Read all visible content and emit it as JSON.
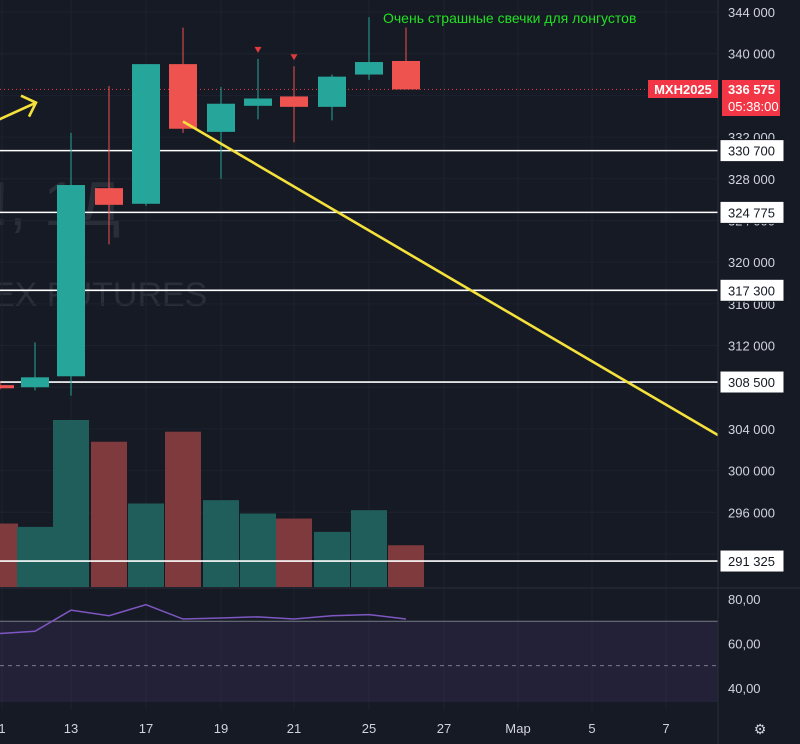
{
  "chart_data": {
    "type": "candlestick",
    "title": "Очень страшные свечки для лонгустов",
    "symbol": "MXH2025",
    "last_price": "336 575",
    "countdown": "05:38:00",
    "watermark_symbol": "!, 1Д",
    "watermark_exchange": "EX FUTURES",
    "price_axis": {
      "range": [
        286000,
        346000
      ],
      "ticks": [
        "344 000",
        "340 000",
        "336 000",
        "332 000",
        "328 000",
        "324 000",
        "320 000",
        "316 000",
        "312 000",
        "308 000",
        "304 000",
        "300 000",
        "296 000",
        "292 000"
      ]
    },
    "candles": [
      {
        "date": "10 фев",
        "open": 308200,
        "high": 308600,
        "low": 307800,
        "close": 307900
      },
      {
        "date": "11 фев",
        "open": 308000,
        "high": 312300,
        "low": 307700,
        "close": 308950
      },
      {
        "date": "13 фев",
        "open": 309050,
        "high": 332400,
        "low": 307200,
        "close": 327400
      },
      {
        "date": "14 фев",
        "open": 327100,
        "high": 336900,
        "low": 321700,
        "close": 325500
      },
      {
        "date": "17 фев",
        "open": 325600,
        "high": 339000,
        "low": 325400,
        "close": 339000
      },
      {
        "date": "18 фев",
        "open": 339000,
        "high": 342500,
        "low": 332400,
        "close": 332800
      },
      {
        "date": "19 фев",
        "open": 332500,
        "high": 336800,
        "low": 328000,
        "close": 335200
      },
      {
        "date": "20 фев",
        "open": 335000,
        "high": 339500,
        "low": 333700,
        "close": 335700
      },
      {
        "date": "21 фев",
        "open": 335900,
        "high": 338800,
        "low": 331500,
        "close": 334900
      },
      {
        "date": "24 фев",
        "open": 334900,
        "high": 338000,
        "low": 333600,
        "close": 337800
      },
      {
        "date": "25 фев",
        "open": 338000,
        "high": 343500,
        "low": 337500,
        "close": 339200
      },
      {
        "date": "26 фев",
        "open": 339300,
        "high": 342500,
        "low": 336600,
        "close": 336575
      }
    ],
    "volumes": [
      0.38,
      0.36,
      1.0,
      0.87,
      0.5,
      0.93,
      0.52,
      0.44,
      0.41,
      0.33,
      0.46,
      0.25
    ],
    "levels": [
      {
        "label": "330 700",
        "value": 330700
      },
      {
        "label": "324 775",
        "value": 324775
      },
      {
        "label": "317 300",
        "value": 317300
      },
      {
        "label": "308 500",
        "value": 308500
      },
      {
        "label": "291 325",
        "value": 291325
      }
    ],
    "trend_line": {
      "from": {
        "date": "18 фев",
        "price": 333500
      },
      "to": {
        "date": "8 мар",
        "price": 303400
      }
    },
    "arrow": {
      "from": {
        "date": "9 фев",
        "price": 333200
      },
      "to": {
        "date": "10 фев",
        "price": 335400
      }
    },
    "peak_markers": [
      "20 фев",
      "21 фев"
    ],
    "date_axis": {
      "ticks": [
        "1",
        "13",
        "17",
        "19",
        "21",
        "25",
        "27",
        "Мар",
        "5",
        "7"
      ]
    },
    "oscillator": {
      "range": [
        30,
        85
      ],
      "ticks": [
        "80,00",
        "60,00",
        "40,00"
      ],
      "upper_band": 70,
      "mid_level": 50,
      "values": [
        64.5,
        65.5,
        75,
        72.5,
        77.5,
        71,
        71.5,
        72,
        71,
        72.5,
        73,
        71
      ]
    },
    "colors": {
      "background": "#161a25",
      "up": "#26a69a",
      "down": "#ef5350",
      "up_volume": "#1f5e5a",
      "down_volume": "#7e3a3c",
      "level": "#ffffff",
      "trend": "#f5e13c",
      "title": "#22e022",
      "badge": "#f23645",
      "oscillator": "#7e57c2"
    }
  },
  "settings_icon": "⚙"
}
